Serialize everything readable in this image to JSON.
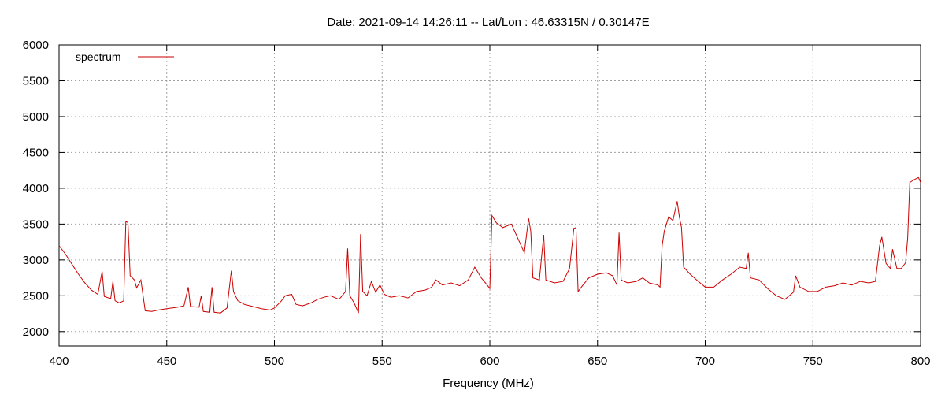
{
  "chart_data": {
    "type": "line",
    "title": "Date: 2021-09-14 14:26:11  --  Lat/Lon : 46.63315N / 0.30147E",
    "xlabel": "Frequency (MHz)",
    "ylabel": "",
    "xlim": [
      400,
      800
    ],
    "ylim": [
      1800,
      6000
    ],
    "xticks": [
      400,
      450,
      500,
      550,
      600,
      650,
      700,
      750,
      800
    ],
    "yticks": [
      2000,
      2500,
      3000,
      3500,
      4000,
      4500,
      5000,
      5500,
      6000
    ],
    "grid": true,
    "legend_position": "top-left",
    "series": [
      {
        "name": "spectrum",
        "color": "#cc0000",
        "points": [
          [
            400,
            3200
          ],
          [
            403,
            3080
          ],
          [
            406,
            2940
          ],
          [
            409,
            2800
          ],
          [
            412,
            2680
          ],
          [
            415,
            2580
          ],
          [
            418,
            2520
          ],
          [
            420,
            2840
          ],
          [
            421,
            2490
          ],
          [
            424,
            2460
          ],
          [
            425,
            2700
          ],
          [
            426,
            2430
          ],
          [
            428,
            2400
          ],
          [
            430,
            2430
          ],
          [
            431,
            3540
          ],
          [
            432,
            3520
          ],
          [
            433,
            2780
          ],
          [
            435,
            2720
          ],
          [
            436,
            2610
          ],
          [
            438,
            2720
          ],
          [
            440,
            2290
          ],
          [
            443,
            2280
          ],
          [
            446,
            2300
          ],
          [
            450,
            2320
          ],
          [
            455,
            2340
          ],
          [
            458,
            2360
          ],
          [
            460,
            2620
          ],
          [
            461,
            2350
          ],
          [
            465,
            2340
          ],
          [
            466,
            2500
          ],
          [
            467,
            2280
          ],
          [
            470,
            2270
          ],
          [
            471,
            2620
          ],
          [
            472,
            2270
          ],
          [
            475,
            2260
          ],
          [
            478,
            2330
          ],
          [
            480,
            2850
          ],
          [
            481,
            2560
          ],
          [
            483,
            2430
          ],
          [
            486,
            2380
          ],
          [
            490,
            2350
          ],
          [
            494,
            2320
          ],
          [
            498,
            2300
          ],
          [
            500,
            2330
          ],
          [
            503,
            2420
          ],
          [
            505,
            2500
          ],
          [
            508,
            2520
          ],
          [
            510,
            2380
          ],
          [
            513,
            2360
          ],
          [
            517,
            2400
          ],
          [
            520,
            2450
          ],
          [
            523,
            2480
          ],
          [
            526,
            2500
          ],
          [
            530,
            2450
          ],
          [
            533,
            2560
          ],
          [
            534,
            3160
          ],
          [
            535,
            2500
          ],
          [
            537,
            2400
          ],
          [
            539,
            2260
          ],
          [
            540,
            3360
          ],
          [
            541,
            2560
          ],
          [
            543,
            2500
          ],
          [
            545,
            2700
          ],
          [
            547,
            2550
          ],
          [
            549,
            2650
          ],
          [
            551,
            2520
          ],
          [
            554,
            2480
          ],
          [
            558,
            2500
          ],
          [
            562,
            2470
          ],
          [
            566,
            2560
          ],
          [
            570,
            2580
          ],
          [
            573,
            2620
          ],
          [
            575,
            2720
          ],
          [
            578,
            2650
          ],
          [
            582,
            2680
          ],
          [
            586,
            2640
          ],
          [
            590,
            2720
          ],
          [
            593,
            2900
          ],
          [
            596,
            2750
          ],
          [
            599,
            2640
          ],
          [
            600,
            2600
          ],
          [
            601,
            3620
          ],
          [
            603,
            3520
          ],
          [
            606,
            3450
          ],
          [
            610,
            3500
          ],
          [
            613,
            3300
          ],
          [
            616,
            3100
          ],
          [
            618,
            3580
          ],
          [
            619,
            3400
          ],
          [
            620,
            2750
          ],
          [
            623,
            2720
          ],
          [
            625,
            3350
          ],
          [
            626,
            2720
          ],
          [
            630,
            2680
          ],
          [
            634,
            2700
          ],
          [
            637,
            2880
          ],
          [
            639,
            3440
          ],
          [
            640,
            3450
          ],
          [
            641,
            2560
          ],
          [
            643,
            2640
          ],
          [
            646,
            2750
          ],
          [
            650,
            2800
          ],
          [
            654,
            2820
          ],
          [
            657,
            2780
          ],
          [
            659,
            2650
          ],
          [
            660,
            3380
          ],
          [
            661,
            2720
          ],
          [
            664,
            2680
          ],
          [
            668,
            2700
          ],
          [
            671,
            2750
          ],
          [
            674,
            2680
          ],
          [
            678,
            2650
          ],
          [
            679,
            2620
          ],
          [
            680,
            3200
          ],
          [
            681,
            3400
          ],
          [
            683,
            3600
          ],
          [
            685,
            3550
          ],
          [
            687,
            3820
          ],
          [
            688,
            3600
          ],
          [
            689,
            3450
          ],
          [
            690,
            2900
          ],
          [
            693,
            2800
          ],
          [
            696,
            2720
          ],
          [
            700,
            2620
          ],
          [
            704,
            2620
          ],
          [
            708,
            2720
          ],
          [
            712,
            2800
          ],
          [
            716,
            2900
          ],
          [
            719,
            2880
          ],
          [
            720,
            3100
          ],
          [
            721,
            2750
          ],
          [
            725,
            2720
          ],
          [
            729,
            2600
          ],
          [
            733,
            2500
          ],
          [
            737,
            2450
          ],
          [
            741,
            2550
          ],
          [
            742,
            2780
          ],
          [
            744,
            2620
          ],
          [
            748,
            2560
          ],
          [
            752,
            2560
          ],
          [
            756,
            2620
          ],
          [
            760,
            2640
          ],
          [
            764,
            2680
          ],
          [
            768,
            2650
          ],
          [
            772,
            2700
          ],
          [
            776,
            2680
          ],
          [
            779,
            2700
          ],
          [
            781,
            3200
          ],
          [
            782,
            3320
          ],
          [
            784,
            2950
          ],
          [
            786,
            2880
          ],
          [
            787,
            3150
          ],
          [
            789,
            2880
          ],
          [
            791,
            2880
          ],
          [
            793,
            2960
          ],
          [
            794,
            3300
          ],
          [
            795,
            4080
          ],
          [
            797,
            4120
          ],
          [
            799,
            4150
          ],
          [
            800,
            4080
          ]
        ]
      }
    ]
  }
}
